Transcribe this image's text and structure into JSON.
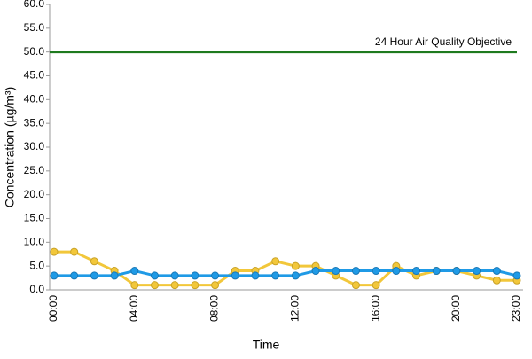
{
  "chart_data": {
    "type": "line",
    "xlabel": "Time",
    "ylabel": "Concentration (µg/m³)",
    "categories": [
      "00:00",
      null,
      null,
      null,
      "04:00",
      null,
      null,
      null,
      "08:00",
      null,
      null,
      null,
      "12:00",
      null,
      null,
      null,
      "16:00",
      null,
      null,
      null,
      "20:00",
      null,
      null,
      "23:00"
    ],
    "series": [
      {
        "color": "#f2c73a",
        "values": [
          8,
          8,
          6,
          4,
          1,
          1,
          1,
          1,
          1,
          4,
          4,
          6,
          5,
          5,
          3,
          1,
          1,
          5,
          3,
          4,
          4,
          3,
          2,
          2
        ]
      },
      {
        "color": "#1f9ae6",
        "values": [
          3,
          3,
          3,
          3,
          4,
          3,
          3,
          3,
          3,
          3,
          3,
          3,
          3,
          4,
          4,
          4,
          4,
          4,
          4,
          4,
          4,
          4,
          4,
          3
        ]
      }
    ],
    "objective": {
      "label": "24 Hour Air Quality Objective",
      "value": 50,
      "color": "#1e7a1e"
    },
    "ylim": [
      0,
      60
    ],
    "yticks": [
      {
        "value": 0,
        "label": "0.0"
      },
      {
        "value": 5,
        "label": "5.0"
      },
      {
        "value": 10,
        "label": "10.0"
      },
      {
        "value": 15,
        "label": "15.0"
      },
      {
        "value": 20,
        "label": "20.0"
      },
      {
        "value": 25,
        "label": "25.0"
      },
      {
        "value": 30,
        "label": "30.0"
      },
      {
        "value": 35,
        "label": "35.0"
      },
      {
        "value": 40,
        "label": "40.0"
      },
      {
        "value": 45,
        "label": "45.0"
      },
      {
        "value": 50,
        "label": "50.0"
      },
      {
        "value": 55,
        "label": "55.0"
      },
      {
        "value": 60,
        "label": "60.0"
      }
    ]
  }
}
